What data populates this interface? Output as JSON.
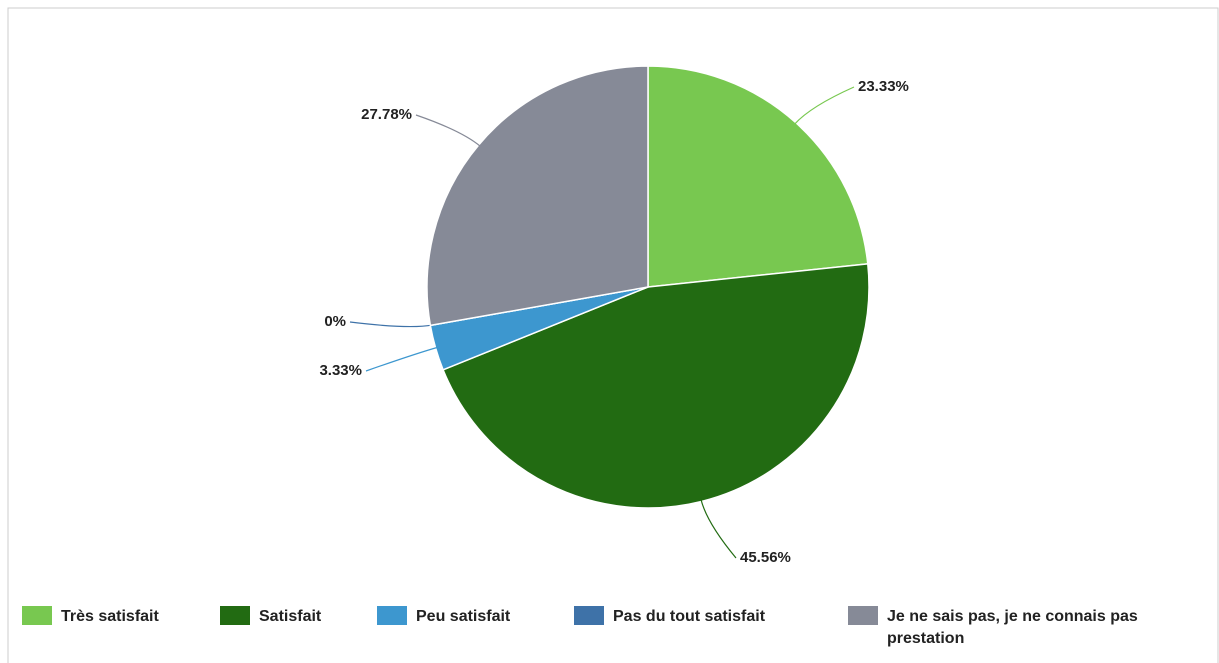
{
  "chart_data": {
    "type": "pie",
    "categories": [
      "Très satisfait",
      "Satisfait",
      "Peu satisfait",
      "Pas du tout satisfait",
      "Je ne sais pas, je ne connais pas prestation"
    ],
    "values": [
      23.33,
      45.56,
      3.33,
      0,
      27.78
    ],
    "value_labels": [
      "23.33%",
      "45.56%",
      "3.33%",
      "0%",
      "27.78%"
    ],
    "colors": [
      "#78c850",
      "#226b12",
      "#3d97cf",
      "#3e72a8",
      "#868a97"
    ],
    "legend": "bottom"
  }
}
